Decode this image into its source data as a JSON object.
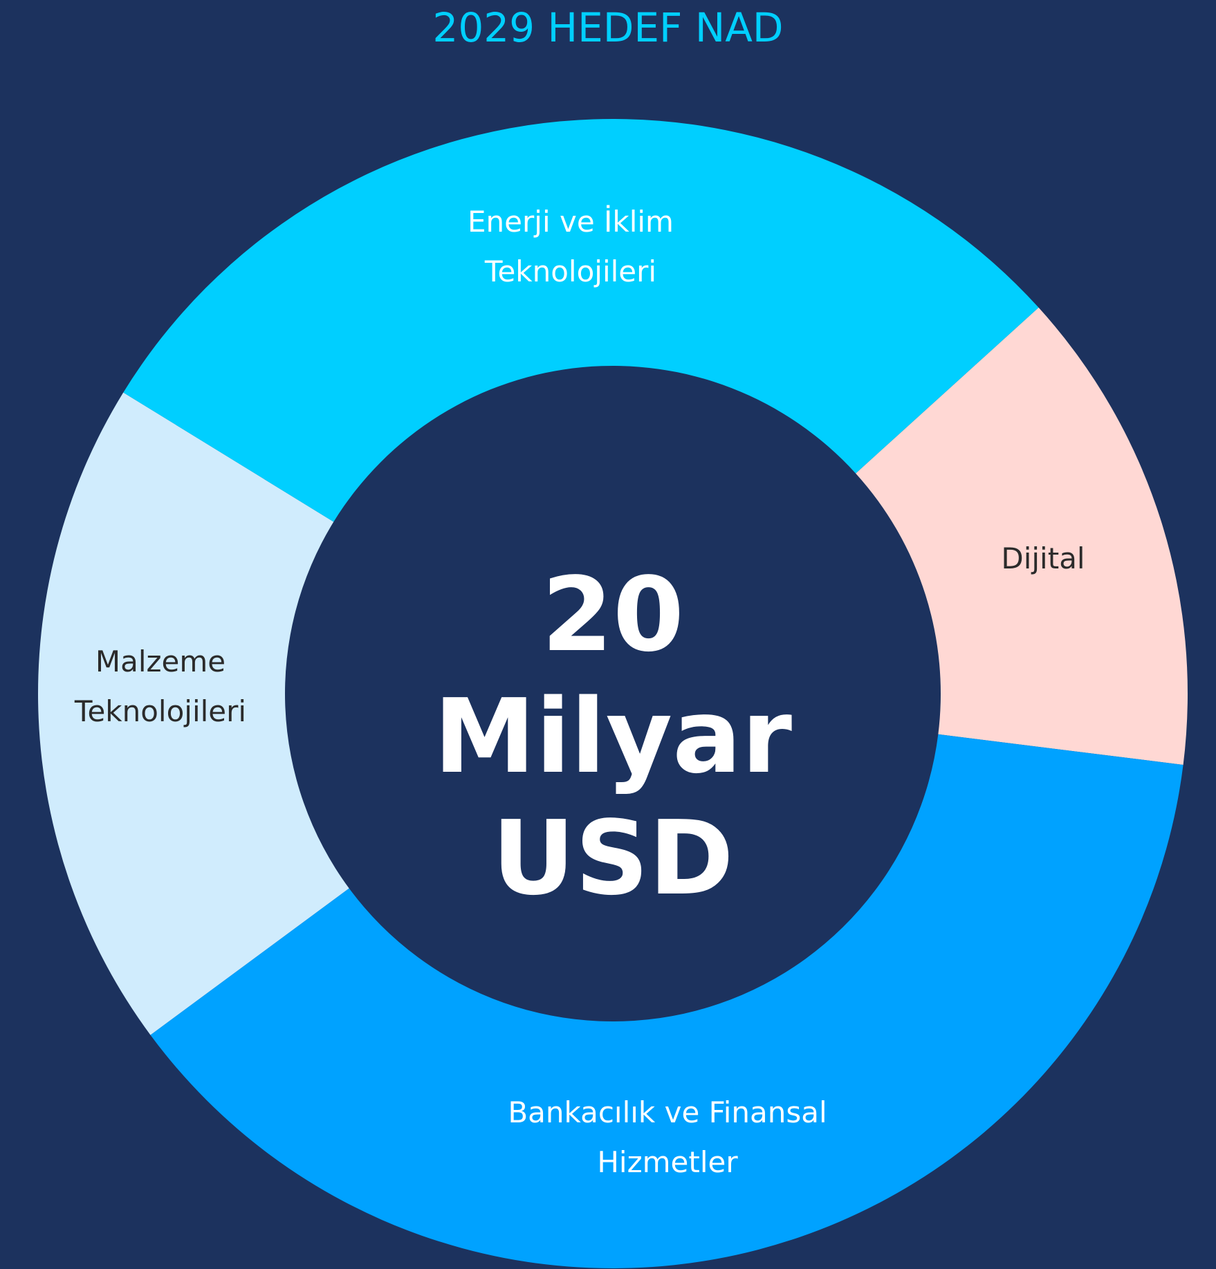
{
  "chart_data": {
    "type": "donut",
    "title": "2029 HEDEF NAD",
    "center_label": "20 Milyar USD",
    "categories": [
      "Enerji ve İklim Teknolojileri",
      "Dijital",
      "Bankacılık ve Finansal Hizmetler",
      "Malzeme Teknolojileri"
    ],
    "values": [
      29.5,
      13.7,
      37.9,
      18.9
    ],
    "colors": [
      "#00cfff",
      "#ffd8d4",
      "#00a2ff",
      "#d0ecfd"
    ]
  }
}
